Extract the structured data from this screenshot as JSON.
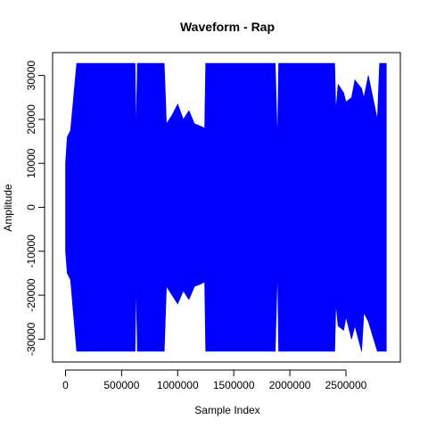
{
  "chart_data": {
    "type": "line",
    "title": "Waveform - Rap",
    "xlabel": "Sample Index",
    "ylabel": "Amplitude",
    "xlim": [
      -115000,
      2985000
    ],
    "ylim": [
      -35200,
      35200
    ],
    "x_ticks": [
      0,
      500000,
      1000000,
      1500000,
      2000000,
      2500000
    ],
    "x_tick_labels": [
      "0",
      "500000",
      "1000000",
      "1500000",
      "2000000",
      "2500000"
    ],
    "y_ticks": [
      -30000,
      -20000,
      -10000,
      0,
      10000,
      20000,
      30000
    ],
    "y_tick_labels": [
      "-30000",
      "-20000",
      "-10000",
      "0",
      "10000",
      "20000",
      "30000"
    ],
    "grid": false,
    "series": [
      {
        "color": "#0000ff",
        "envelope": {
          "x": [
            0,
            15000,
            45000,
            100000,
            300000,
            500000,
            600000,
            620000,
            630000,
            640000,
            700000,
            750000,
            800000,
            880000,
            900000,
            950000,
            1000000,
            1050000,
            1100000,
            1150000,
            1200000,
            1240000,
            1250000,
            1400000,
            1600000,
            1800000,
            1870000,
            1890000,
            1900000,
            1910000,
            1930000,
            2000000,
            2200000,
            2400000,
            2410000,
            2430000,
            2480000,
            2500000,
            2550000,
            2580000,
            2640000,
            2660000,
            2700000,
            2780000,
            2800000,
            2850000,
            2860000
          ],
          "max": [
            10000,
            16000,
            17500,
            32767,
            32767,
            32767,
            32767,
            32767,
            17000,
            32767,
            32767,
            32767,
            32767,
            32767,
            19000,
            21000,
            23500,
            20000,
            22000,
            19000,
            18500,
            18000,
            32767,
            32767,
            32767,
            32767,
            32767,
            15000,
            32767,
            32767,
            32767,
            32767,
            32767,
            32767,
            22000,
            28000,
            26000,
            24000,
            25000,
            29000,
            27000,
            25000,
            30000,
            20000,
            32767,
            32767,
            32767
          ],
          "min": [
            -10000,
            -15000,
            -16500,
            -32768,
            -32768,
            -32768,
            -32768,
            -32768,
            -17000,
            -32768,
            -32768,
            -32768,
            -32768,
            -32768,
            -18000,
            -20000,
            -22000,
            -19000,
            -21000,
            -18000,
            -17500,
            -17000,
            -32768,
            -32768,
            -32768,
            -32768,
            -32768,
            -14000,
            -32768,
            -32768,
            -32768,
            -32768,
            -32768,
            -32768,
            -22000,
            -27000,
            -28000,
            -25000,
            -30000,
            -27000,
            -32768,
            -24000,
            -26000,
            -32768,
            -32768,
            -32768,
            -32768
          ]
        }
      }
    ]
  }
}
